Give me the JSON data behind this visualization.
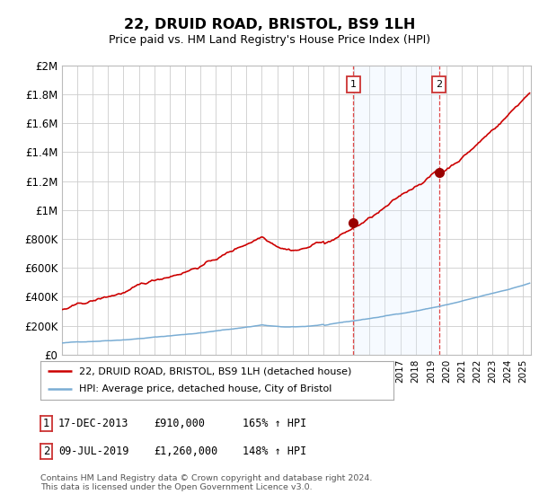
{
  "title": "22, DRUID ROAD, BRISTOL, BS9 1LH",
  "subtitle": "Price paid vs. HM Land Registry's House Price Index (HPI)",
  "ylabel_ticks": [
    "£0",
    "£200K",
    "£400K",
    "£600K",
    "£800K",
    "£1M",
    "£1.2M",
    "£1.4M",
    "£1.6M",
    "£1.8M",
    "£2M"
  ],
  "ylim": [
    0,
    2000000
  ],
  "ytick_values": [
    0,
    200000,
    400000,
    600000,
    800000,
    1000000,
    1200000,
    1400000,
    1600000,
    1800000,
    2000000
  ],
  "sale1_date": 2013.96,
  "sale1_price": 910000,
  "sale2_date": 2019.52,
  "sale2_price": 1260000,
  "hpi_line_color": "#7aadd4",
  "price_line_color": "#cc0000",
  "sale_marker_color": "#990000",
  "shade_color": "#ddeeff",
  "grid_color": "#cccccc",
  "legend_line1": "22, DRUID ROAD, BRISTOL, BS9 1LH (detached house)",
  "legend_line2": "HPI: Average price, detached house, City of Bristol",
  "footnote": "Contains HM Land Registry data © Crown copyright and database right 2024.\nThis data is licensed under the Open Government Licence v3.0.",
  "xmin": 1995.0,
  "xmax": 2025.5
}
